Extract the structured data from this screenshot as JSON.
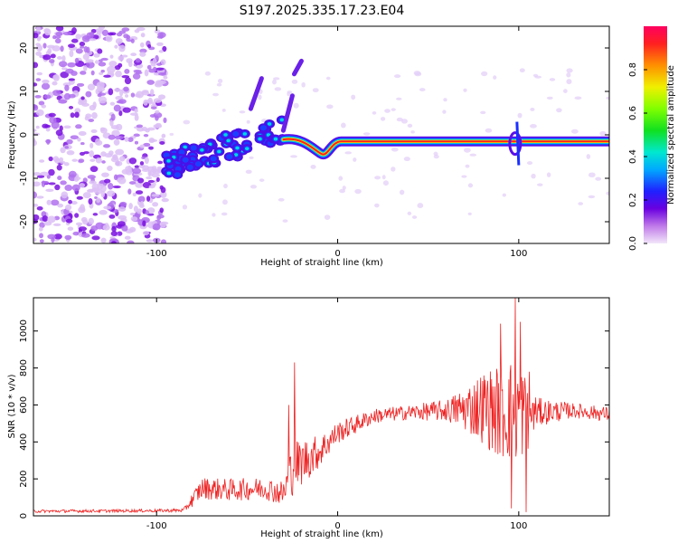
{
  "title": "S197.2025.335.17.23.E04",
  "chart_data": [
    {
      "type": "heatmap",
      "name": "spectrogram",
      "xlabel": "Height of straight line (km)",
      "ylabel": "Frequency (Hz)",
      "xlim": [
        -168,
        150
      ],
      "ylim": [
        -25,
        25
      ],
      "xticks": [
        -100,
        0,
        100
      ],
      "yticks": [
        -20,
        -10,
        0,
        10,
        20
      ],
      "colorbar": {
        "label": "Normalized spectral amplitude",
        "range": [
          0,
          1
        ],
        "ticks": [
          "0.0",
          "0.2",
          "0.4",
          "0.6",
          "0.8"
        ]
      },
      "features": {
        "noise_region_x": [
          -168,
          -95
        ],
        "dispersive_segment": {
          "x": [
            -95,
            -30
          ],
          "freq_start": -7,
          "freq_end": 1
        },
        "main_line": {
          "x": [
            -30,
            150
          ],
          "freq": -1.5
        },
        "dip": {
          "x": -8,
          "freq": -4.5
        },
        "spike_upper": {
          "x": -45,
          "freq": 11
        }
      }
    },
    {
      "type": "line",
      "name": "snr",
      "xlabel": "Height of straight line (km)",
      "ylabel": "SNR (10 * v/v)",
      "xlim": [
        -168,
        150
      ],
      "ylim": [
        0,
        1180
      ],
      "xticks": [
        -100,
        0,
        100
      ],
      "yticks": [
        0,
        200,
        400,
        600,
        800,
        1000
      ],
      "series_color": "#ee2222",
      "envelope": {
        "x": [
          -168,
          -100,
          -85,
          -80,
          -75,
          -60,
          -40,
          -30,
          -25,
          -10,
          0,
          20,
          40,
          60,
          70,
          80,
          90,
          100,
          105,
          110,
          130,
          150
        ],
        "mean": [
          25,
          28,
          30,
          90,
          150,
          140,
          150,
          120,
          260,
          350,
          450,
          540,
          560,
          570,
          580,
          590,
          560,
          580,
          550,
          560,
          570,
          550
        ],
        "amplitude": [
          8,
          8,
          10,
          40,
          60,
          60,
          60,
          70,
          150,
          90,
          60,
          40,
          40,
          60,
          120,
          200,
          260,
          300,
          200,
          80,
          40,
          40
        ]
      },
      "spikes": [
        {
          "x": -24,
          "y": 830
        },
        {
          "x": -27,
          "y": 600
        },
        {
          "x": 90,
          "y": 1040
        },
        {
          "x": 98,
          "y": 1180
        },
        {
          "x": 101,
          "y": 1050
        },
        {
          "x": 106,
          "y": 780
        },
        {
          "x": 96,
          "y": 40
        },
        {
          "x": 104,
          "y": 20
        }
      ]
    }
  ]
}
